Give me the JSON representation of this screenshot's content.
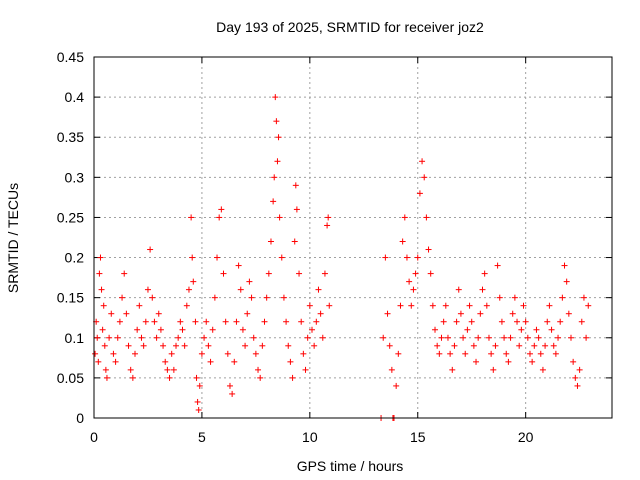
{
  "chart_data": {
    "type": "scatter",
    "title": "Day 193 of 2025, SRMTID for receiver joz2",
    "xlabel": "GPS time / hours",
    "ylabel": "SRMTID / TECUs",
    "xlim": [
      0,
      24
    ],
    "ylim": [
      0,
      0.45
    ],
    "xticks": [
      0,
      5,
      10,
      15,
      20
    ],
    "yticks": [
      0,
      0.05,
      0.1,
      0.15,
      0.2,
      0.25,
      0.3,
      0.35,
      0.4,
      0.45
    ],
    "xtick_labels": [
      "0",
      "5",
      "10",
      "15",
      "20"
    ],
    "ytick_labels": [
      "0",
      "0.05",
      "0.1",
      "0.15",
      "0.2",
      "0.25",
      "0.3",
      "0.35",
      "0.4",
      "0.45"
    ],
    "grid": true,
    "marker": "plus",
    "colors": {
      "series": "#ff0000",
      "grid": "#a0a0a0",
      "axis": "#000000"
    },
    "series": [
      {
        "name": "SRMTID",
        "points": [
          [
            0.05,
            0.08
          ],
          [
            0.1,
            0.12
          ],
          [
            0.15,
            0.1
          ],
          [
            0.2,
            0.07
          ],
          [
            0.25,
            0.18
          ],
          [
            0.3,
            0.2
          ],
          [
            0.35,
            0.16
          ],
          [
            0.4,
            0.11
          ],
          [
            0.45,
            0.14
          ],
          [
            0.5,
            0.09
          ],
          [
            0.55,
            0.06
          ],
          [
            0.6,
            0.05
          ],
          [
            0.7,
            0.1
          ],
          [
            0.8,
            0.13
          ],
          [
            0.9,
            0.08
          ],
          [
            1.0,
            0.07
          ],
          [
            1.1,
            0.1
          ],
          [
            1.2,
            0.12
          ],
          [
            1.3,
            0.15
          ],
          [
            1.4,
            0.18
          ],
          [
            1.5,
            0.13
          ],
          [
            1.6,
            0.09
          ],
          [
            1.7,
            0.06
          ],
          [
            1.8,
            0.05
          ],
          [
            1.9,
            0.08
          ],
          [
            2.0,
            0.11
          ],
          [
            2.1,
            0.14
          ],
          [
            2.2,
            0.1
          ],
          [
            2.3,
            0.09
          ],
          [
            2.4,
            0.12
          ],
          [
            2.5,
            0.16
          ],
          [
            2.6,
            0.21
          ],
          [
            2.7,
            0.15
          ],
          [
            2.8,
            0.12
          ],
          [
            2.9,
            0.1
          ],
          [
            3.0,
            0.13
          ],
          [
            3.1,
            0.11
          ],
          [
            3.2,
            0.09
          ],
          [
            3.3,
            0.07
          ],
          [
            3.4,
            0.06
          ],
          [
            3.5,
            0.05
          ],
          [
            3.6,
            0.08
          ],
          [
            3.7,
            0.06
          ],
          [
            3.8,
            0.09
          ],
          [
            3.9,
            0.1
          ],
          [
            4.0,
            0.12
          ],
          [
            4.1,
            0.11
          ],
          [
            4.2,
            0.09
          ],
          [
            4.3,
            0.14
          ],
          [
            4.4,
            0.16
          ],
          [
            4.5,
            0.25
          ],
          [
            4.55,
            0.2
          ],
          [
            4.6,
            0.17
          ],
          [
            4.7,
            0.12
          ],
          [
            4.75,
            0.05
          ],
          [
            4.8,
            0.02
          ],
          [
            4.85,
            0.01
          ],
          [
            4.9,
            0.04
          ],
          [
            5.0,
            0.08
          ],
          [
            5.1,
            0.1
          ],
          [
            5.2,
            0.12
          ],
          [
            5.3,
            0.09
          ],
          [
            5.4,
            0.07
          ],
          [
            5.5,
            0.11
          ],
          [
            5.6,
            0.15
          ],
          [
            5.7,
            0.2
          ],
          [
            5.8,
            0.25
          ],
          [
            5.9,
            0.26
          ],
          [
            6.0,
            0.18
          ],
          [
            6.1,
            0.12
          ],
          [
            6.2,
            0.08
          ],
          [
            6.3,
            0.04
          ],
          [
            6.4,
            0.03
          ],
          [
            6.5,
            0.07
          ],
          [
            6.6,
            0.12
          ],
          [
            6.7,
            0.19
          ],
          [
            6.8,
            0.16
          ],
          [
            6.9,
            0.11
          ],
          [
            7.0,
            0.09
          ],
          [
            7.1,
            0.13
          ],
          [
            7.2,
            0.17
          ],
          [
            7.3,
            0.15
          ],
          [
            7.4,
            0.1
          ],
          [
            7.5,
            0.08
          ],
          [
            7.6,
            0.06
          ],
          [
            7.7,
            0.05
          ],
          [
            7.8,
            0.09
          ],
          [
            7.9,
            0.12
          ],
          [
            8.0,
            0.15
          ],
          [
            8.1,
            0.18
          ],
          [
            8.2,
            0.22
          ],
          [
            8.3,
            0.27
          ],
          [
            8.35,
            0.3
          ],
          [
            8.4,
            0.4
          ],
          [
            8.45,
            0.37
          ],
          [
            8.5,
            0.32
          ],
          [
            8.55,
            0.35
          ],
          [
            8.6,
            0.25
          ],
          [
            8.7,
            0.2
          ],
          [
            8.8,
            0.15
          ],
          [
            8.9,
            0.12
          ],
          [
            9.0,
            0.09
          ],
          [
            9.1,
            0.07
          ],
          [
            9.2,
            0.05
          ],
          [
            9.3,
            0.22
          ],
          [
            9.35,
            0.29
          ],
          [
            9.4,
            0.26
          ],
          [
            9.5,
            0.18
          ],
          [
            9.6,
            0.12
          ],
          [
            9.7,
            0.08
          ],
          [
            9.8,
            0.06
          ],
          [
            9.9,
            0.1
          ],
          [
            10.0,
            0.14
          ],
          [
            10.1,
            0.11
          ],
          [
            10.2,
            0.09
          ],
          [
            10.3,
            0.12
          ],
          [
            10.4,
            0.16
          ],
          [
            10.5,
            0.13
          ],
          [
            10.6,
            0.1
          ],
          [
            10.7,
            0.18
          ],
          [
            10.8,
            0.24
          ],
          [
            10.85,
            0.25
          ],
          [
            10.9,
            0.14
          ],
          [
            13.3,
            0.0
          ],
          [
            13.4,
            0.1
          ],
          [
            13.5,
            0.2
          ],
          [
            13.6,
            0.13
          ],
          [
            13.7,
            0.09
          ],
          [
            13.8,
            0.06
          ],
          [
            13.85,
            0.0
          ],
          [
            13.9,
            0.0
          ],
          [
            14.0,
            0.04
          ],
          [
            14.1,
            0.08
          ],
          [
            14.2,
            0.14
          ],
          [
            14.3,
            0.22
          ],
          [
            14.4,
            0.25
          ],
          [
            14.5,
            0.2
          ],
          [
            14.6,
            0.17
          ],
          [
            14.7,
            0.14
          ],
          [
            14.8,
            0.16
          ],
          [
            14.9,
            0.18
          ],
          [
            15.0,
            0.2
          ],
          [
            15.1,
            0.28
          ],
          [
            15.2,
            0.32
          ],
          [
            15.3,
            0.3
          ],
          [
            15.4,
            0.25
          ],
          [
            15.5,
            0.21
          ],
          [
            15.6,
            0.18
          ],
          [
            15.7,
            0.14
          ],
          [
            15.8,
            0.11
          ],
          [
            15.9,
            0.09
          ],
          [
            16.0,
            0.08
          ],
          [
            16.1,
            0.1
          ],
          [
            16.2,
            0.12
          ],
          [
            16.3,
            0.14
          ],
          [
            16.4,
            0.1
          ],
          [
            16.5,
            0.08
          ],
          [
            16.6,
            0.06
          ],
          [
            16.7,
            0.09
          ],
          [
            16.8,
            0.12
          ],
          [
            16.9,
            0.16
          ],
          [
            17.0,
            0.13
          ],
          [
            17.1,
            0.1
          ],
          [
            17.2,
            0.08
          ],
          [
            17.3,
            0.11
          ],
          [
            17.4,
            0.14
          ],
          [
            17.5,
            0.12
          ],
          [
            17.6,
            0.09
          ],
          [
            17.7,
            0.07
          ],
          [
            17.8,
            0.1
          ],
          [
            17.9,
            0.13
          ],
          [
            18.0,
            0.16
          ],
          [
            18.1,
            0.18
          ],
          [
            18.2,
            0.14
          ],
          [
            18.3,
            0.1
          ],
          [
            18.4,
            0.08
          ],
          [
            18.5,
            0.06
          ],
          [
            18.6,
            0.09
          ],
          [
            18.7,
            0.19
          ],
          [
            18.8,
            0.15
          ],
          [
            18.9,
            0.12
          ],
          [
            19.0,
            0.1
          ],
          [
            19.1,
            0.08
          ],
          [
            19.2,
            0.07
          ],
          [
            19.3,
            0.1
          ],
          [
            19.4,
            0.13
          ],
          [
            19.5,
            0.15
          ],
          [
            19.6,
            0.12
          ],
          [
            19.7,
            0.09
          ],
          [
            19.8,
            0.11
          ],
          [
            19.9,
            0.14
          ],
          [
            20.0,
            0.12
          ],
          [
            20.1,
            0.1
          ],
          [
            20.2,
            0.08
          ],
          [
            20.3,
            0.07
          ],
          [
            20.4,
            0.09
          ],
          [
            20.5,
            0.11
          ],
          [
            20.6,
            0.1
          ],
          [
            20.7,
            0.08
          ],
          [
            20.8,
            0.06
          ],
          [
            20.9,
            0.09
          ],
          [
            21.0,
            0.12
          ],
          [
            21.1,
            0.14
          ],
          [
            21.2,
            0.11
          ],
          [
            21.3,
            0.09
          ],
          [
            21.4,
            0.08
          ],
          [
            21.5,
            0.1
          ],
          [
            21.6,
            0.12
          ],
          [
            21.7,
            0.15
          ],
          [
            21.8,
            0.19
          ],
          [
            21.9,
            0.17
          ],
          [
            22.0,
            0.13
          ],
          [
            22.1,
            0.1
          ],
          [
            22.2,
            0.07
          ],
          [
            22.3,
            0.05
          ],
          [
            22.4,
            0.04
          ],
          [
            22.5,
            0.06
          ],
          [
            22.6,
            0.12
          ],
          [
            22.7,
            0.15
          ],
          [
            22.8,
            0.1
          ],
          [
            22.9,
            0.14
          ]
        ]
      }
    ]
  }
}
